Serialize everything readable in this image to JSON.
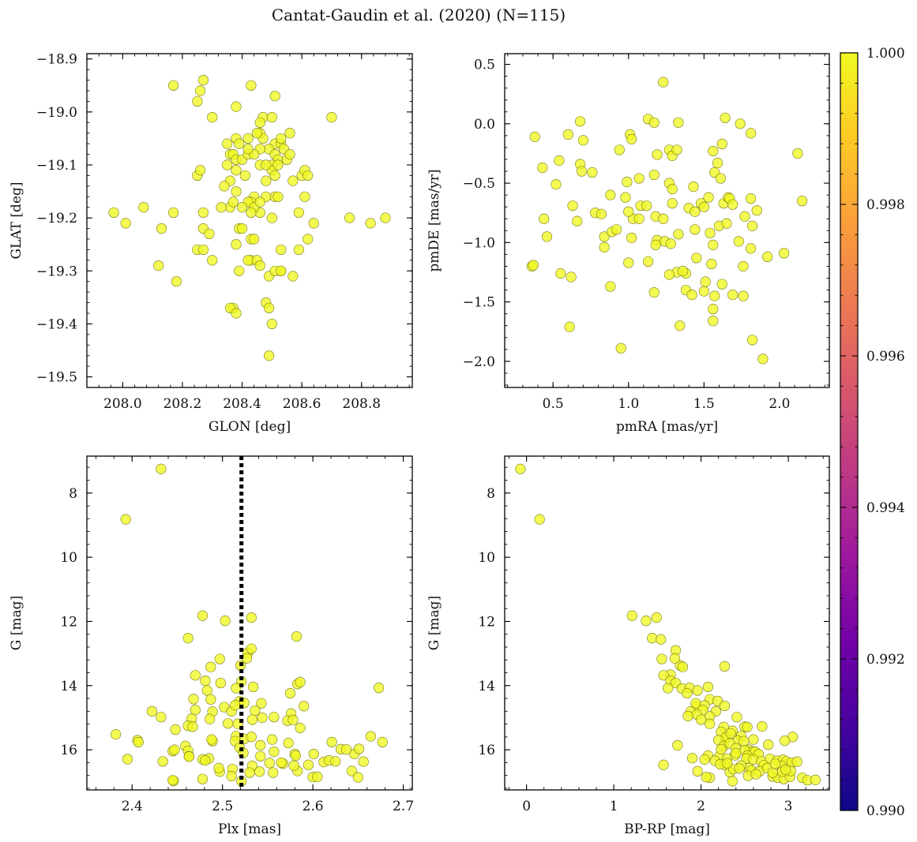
{
  "figure_title": "Cantat-Gaudin et al. (2020) (N=115)",
  "colorbar": {
    "min": 0.99,
    "max": 1.0,
    "ticks": [
      "0.990",
      "0.992",
      "0.994",
      "0.996",
      "0.998",
      "1.000"
    ],
    "tick_values": [
      0.99,
      0.992,
      0.994,
      0.996,
      0.998,
      1.0
    ],
    "colormap": "plasma",
    "colors": [
      "#0d0887",
      "#46039f",
      "#7201a8",
      "#9c179e",
      "#bd3786",
      "#d8576b",
      "#ed7953",
      "#fb9f3a",
      "#fdca26",
      "#f0f921"
    ]
  },
  "point_color": "#f0f921",
  "chart_data": [
    {
      "type": "scatter",
      "id": "sky",
      "title": "",
      "xlabel": "GLON [deg]",
      "ylabel": "GLAT [deg]",
      "xlim": [
        207.88,
        208.97
      ],
      "ylim": [
        -19.52,
        -18.89
      ],
      "xticks": [
        208.0,
        208.2,
        208.4,
        208.6,
        208.8
      ],
      "xtick_labels": [
        "208.0",
        "208.2",
        "208.4",
        "208.6",
        "208.8"
      ],
      "yticks": [
        -18.9,
        -19.0,
        -19.1,
        -19.2,
        -19.3,
        -19.4,
        -19.5
      ],
      "ytick_labels": [
        "−18.9",
        "−19.0",
        "−19.1",
        "−19.2",
        "−19.3",
        "−19.4",
        "−19.5"
      ],
      "x": [
        208.17,
        208.27,
        208.43,
        208.25,
        208.26,
        208.38,
        208.51,
        208.3,
        208.7,
        208.47,
        208.5,
        208.46,
        208.56,
        208.46,
        208.51,
        208.38,
        208.35,
        208.42,
        208.53,
        208.49,
        208.51,
        208.46,
        208.39,
        208.54,
        208.36,
        208.37,
        208.38,
        208.4,
        208.42,
        208.44,
        208.52,
        208.5,
        208.55,
        208.46,
        208.5,
        208.38,
        208.25,
        208.26,
        208.41,
        208.36,
        208.48,
        208.51,
        208.6,
        208.61,
        208.57,
        208.34,
        208.38,
        208.51,
        208.44,
        208.43,
        208.42,
        208.36,
        208.27,
        208.4,
        208.46,
        208.61,
        208.37,
        207.97,
        208.01,
        208.07,
        208.17,
        208.13,
        208.27,
        208.29,
        208.43,
        208.44,
        208.62,
        208.59,
        208.64,
        208.39,
        208.38,
        208.25,
        208.27,
        208.3,
        208.43,
        208.59,
        208.53,
        208.42,
        208.45,
        208.46,
        208.53,
        208.49,
        208.12,
        208.18,
        208.39,
        208.51,
        208.53,
        208.57,
        208.37,
        208.36,
        208.38,
        208.48,
        208.49,
        208.5,
        208.49,
        208.76,
        208.83,
        208.88,
        208.44,
        208.33,
        208.4,
        208.48,
        208.52,
        208.46,
        208.47,
        208.53,
        208.56,
        208.62,
        208.35,
        208.42,
        208.45,
        208.52,
        208.43,
        208.5,
        208.48
      ],
      "y": [
        -18.95,
        -18.94,
        -18.95,
        -18.98,
        -18.96,
        -18.99,
        -18.97,
        -19.01,
        -19.01,
        -19.01,
        -19.01,
        -19.02,
        -19.04,
        -19.04,
        -19.06,
        -19.05,
        -19.06,
        -19.05,
        -19.06,
        -19.07,
        -19.08,
        -19.07,
        -19.06,
        -19.07,
        -19.08,
        -19.08,
        -19.09,
        -19.09,
        -19.08,
        -19.08,
        -19.09,
        -19.1,
        -19.09,
        -19.1,
        -19.11,
        -19.11,
        -19.12,
        -19.11,
        -19.12,
        -19.13,
        -19.13,
        -19.12,
        -19.12,
        -19.11,
        -19.13,
        -19.14,
        -19.15,
        -19.16,
        -19.16,
        -19.17,
        -19.17,
        -19.18,
        -19.19,
        -19.18,
        -19.19,
        -19.16,
        -19.17,
        -19.19,
        -19.21,
        -19.18,
        -19.19,
        -19.22,
        -19.22,
        -19.23,
        -19.24,
        -19.24,
        -19.24,
        -19.19,
        -19.21,
        -19.22,
        -19.25,
        -19.26,
        -19.26,
        -19.28,
        -19.28,
        -19.26,
        -19.26,
        -19.28,
        -19.28,
        -19.29,
        -19.3,
        -19.31,
        -19.29,
        -19.32,
        -19.3,
        -19.3,
        -19.3,
        -19.31,
        -19.37,
        -19.37,
        -19.38,
        -19.36,
        -19.37,
        -19.4,
        -19.46,
        -19.2,
        -19.21,
        -19.2,
        -19.18,
        -19.18,
        -19.22,
        -19.16,
        -19.16,
        -19.17,
        -19.05,
        -19.05,
        -19.08,
        -19.12,
        -19.1,
        -19.07,
        -19.04,
        -19.1,
        -19.19,
        -19.2,
        -19.1
      ],
      "vline": null
    },
    {
      "type": "scatter",
      "id": "pm",
      "title": "",
      "xlabel": "pmRA [mas/yr]",
      "ylabel": "pmDE [mas/yr]",
      "xlim": [
        0.18,
        2.33
      ],
      "ylim": [
        -2.22,
        0.59
      ],
      "xticks": [
        0.5,
        1.0,
        1.5,
        2.0
      ],
      "xtick_labels": [
        "0.5",
        "1.0",
        "1.5",
        "2.0"
      ],
      "yticks": [
        0.5,
        0.0,
        -0.5,
        -1.0,
        -1.5,
        -2.0
      ],
      "ytick_labels": [
        "0.5",
        "0.0",
        "−0.5",
        "−1.0",
        "−1.5",
        "−2.0"
      ],
      "x": [
        1.23,
        0.68,
        1.13,
        1.17,
        1.33,
        1.64,
        1.74,
        1.81,
        0.38,
        0.6,
        0.7,
        1.01,
        1.02,
        0.43,
        0.54,
        0.68,
        0.69,
        0.76,
        0.94,
        1.19,
        1.27,
        1.29,
        1.32,
        1.56,
        1.62,
        2.12,
        2.15,
        1.59,
        0.52,
        0.99,
        1.07,
        1.17,
        1.27,
        1.29,
        1.29,
        1.43,
        1.48,
        1.53,
        1.57,
        1.61,
        1.63,
        1.66,
        1.67,
        1.69,
        1.77,
        1.81,
        1.85,
        0.63,
        0.66,
        0.88,
        0.98,
        1.08,
        1.18,
        1.23,
        1.4,
        1.44,
        1.5,
        1.6,
        0.44,
        0.78,
        0.82,
        0.84,
        0.89,
        0.92,
        1.02,
        1.19,
        1.24,
        1.33,
        1.44,
        1.54,
        1.65,
        1.73,
        1.81,
        1.92,
        2.03,
        0.46,
        0.84,
        1.0,
        1.13,
        1.28,
        1.38,
        1.45,
        1.55,
        1.76,
        1.82,
        1.03,
        1.07,
        1.18,
        1.32,
        1.36,
        1.5,
        1.57,
        0.36,
        0.37,
        0.55,
        0.62,
        0.88,
        1.17,
        1.27,
        1.38,
        1.42,
        1.51,
        1.62,
        1.69,
        1.76,
        1.56,
        1.56,
        1.34,
        1.56,
        0.61,
        1.82,
        0.95,
        1.89,
        1.12,
        1.0
      ],
      "y": [
        0.35,
        0.02,
        0.04,
        0.01,
        0.01,
        0.05,
        0.0,
        -0.08,
        -0.11,
        -0.09,
        -0.14,
        -0.09,
        -0.13,
        -0.37,
        -0.31,
        -0.34,
        -0.4,
        -0.41,
        -0.22,
        -0.26,
        -0.22,
        -0.27,
        -0.22,
        -0.23,
        -0.17,
        -0.25,
        -0.65,
        -0.33,
        -0.51,
        -0.49,
        -0.46,
        -0.43,
        -0.5,
        -0.55,
        -0.67,
        -0.53,
        -0.67,
        -0.62,
        -0.41,
        -0.46,
        -0.67,
        -0.62,
        -0.63,
        -0.68,
        -0.78,
        -0.63,
        -0.73,
        -0.69,
        -0.82,
        -0.6,
        -0.62,
        -0.69,
        -0.78,
        -0.8,
        -0.71,
        -0.74,
        -0.7,
        -0.86,
        -0.8,
        -0.75,
        -0.76,
        -0.95,
        -0.91,
        -0.89,
        -0.96,
        -0.98,
        -0.99,
        -0.93,
        -0.89,
        -0.92,
        -0.84,
        -0.99,
        -1.05,
        -1.12,
        -1.09,
        -0.95,
        -1.04,
        -1.17,
        -1.16,
        -1.01,
        -1.26,
        -1.13,
        -1.18,
        -1.2,
        -0.86,
        -0.8,
        -0.8,
        -1.02,
        -1.25,
        -1.24,
        -1.41,
        -1.45,
        -1.2,
        -1.19,
        -1.26,
        -1.29,
        -1.37,
        -1.42,
        -1.27,
        -1.4,
        -1.44,
        -1.33,
        -1.35,
        -1.44,
        -1.45,
        -1.56,
        -1.66,
        -1.7,
        -1.02,
        -1.71,
        -1.82,
        -1.89,
        -1.98,
        -0.69,
        -0.74
      ],
      "vline": null
    },
    {
      "type": "scatter",
      "id": "plx",
      "title": "",
      "xlabel": "Plx [mas]",
      "ylabel": "G [mag]",
      "xlim": [
        2.35,
        2.71
      ],
      "ylim": [
        17.25,
        6.85
      ],
      "xticks": [
        2.4,
        2.5,
        2.6,
        2.7
      ],
      "xtick_labels": [
        "2.4",
        "2.5",
        "2.6",
        "2.7"
      ],
      "yticks": [
        8,
        10,
        12,
        14,
        16
      ],
      "ytick_labels": [
        "8",
        "10",
        "12",
        "14",
        "16"
      ],
      "x": [
        2.432,
        2.393,
        2.478,
        2.503,
        2.532,
        2.462,
        2.528,
        2.582,
        2.532,
        2.497,
        2.487,
        2.527,
        2.52,
        2.47,
        2.481,
        2.498,
        2.521,
        2.515,
        2.534,
        2.583,
        2.575,
        2.586,
        2.673,
        2.468,
        2.483,
        2.487,
        2.502,
        2.519,
        2.524,
        2.536,
        2.543,
        2.557,
        2.576,
        2.59,
        2.517,
        2.51,
        2.47,
        2.489,
        2.514,
        2.533,
        2.466,
        2.486,
        2.506,
        2.524,
        2.544,
        2.572,
        2.422,
        2.432,
        2.448,
        2.462,
        2.467,
        2.489,
        2.515,
        2.532,
        2.555,
        2.578,
        2.586,
        2.445,
        2.459,
        2.488,
        2.514,
        2.519,
        2.542,
        2.557,
        2.573,
        2.58,
        2.382,
        2.406,
        2.407,
        2.447,
        2.462,
        2.485,
        2.523,
        2.542,
        2.581,
        2.601,
        2.621,
        2.631,
        2.646,
        2.651,
        2.664,
        2.677,
        2.395,
        2.434,
        2.446,
        2.463,
        2.478,
        2.497,
        2.511,
        2.533,
        2.556,
        2.567,
        2.583,
        2.6,
        2.612,
        2.618,
        2.643,
        2.445,
        2.463,
        2.478,
        2.481,
        2.496,
        2.51,
        2.521,
        2.53,
        2.541,
        2.552,
        2.565,
        2.579,
        2.595,
        2.605,
        2.625,
        2.656,
        2.637,
        2.65
      ],
      "y": [
        7.25,
        8.82,
        11.82,
        11.98,
        11.88,
        12.52,
        12.98,
        12.47,
        12.85,
        13.17,
        13.42,
        13.15,
        13.37,
        13.68,
        13.85,
        13.92,
        13.87,
        14.08,
        14.04,
        13.95,
        14.24,
        13.89,
        14.07,
        14.42,
        14.15,
        14.43,
        14.67,
        14.49,
        14.54,
        14.78,
        14.55,
        14.98,
        14.87,
        14.64,
        15.19,
        14.8,
        14.76,
        14.81,
        14.61,
        15.06,
        15.03,
        15.04,
        15.18,
        15.66,
        15.0,
        15.09,
        14.8,
        14.98,
        15.37,
        15.25,
        15.28,
        15.73,
        15.57,
        15.6,
        15.68,
        15.07,
        15.32,
        16.04,
        15.88,
        15.68,
        15.73,
        15.93,
        15.86,
        16.06,
        15.79,
        16.13,
        15.52,
        15.7,
        15.76,
        16.0,
        16.03,
        16.27,
        16.1,
        16.2,
        16.18,
        16.13,
        15.76,
        15.98,
        16.13,
        15.97,
        15.58,
        15.76,
        16.29,
        16.36,
        16.97,
        16.2,
        16.3,
        16.68,
        16.6,
        16.5,
        16.71,
        16.43,
        16.66,
        16.85,
        16.38,
        16.33,
        16.66,
        16.95,
        16.21,
        16.91,
        16.33,
        16.57,
        16.82,
        16.98,
        16.71,
        16.68,
        16.41,
        16.4,
        16.49,
        16.47,
        16.84,
        16.36,
        16.37,
        15.99,
        16.86
      ],
      "vline": 2.521
    },
    {
      "type": "scatter",
      "id": "cmd",
      "title": "",
      "xlabel": "BP-RP [mag]",
      "ylabel": "G [mag]",
      "xlim": [
        -0.25,
        3.47
      ],
      "ylim": [
        17.25,
        6.85
      ],
      "xticks": [
        0,
        1,
        2,
        3
      ],
      "xtick_labels": [
        "0",
        "1",
        "2",
        "3"
      ],
      "yticks": [
        8,
        10,
        12,
        14,
        16
      ],
      "ytick_labels": [
        "8",
        "10",
        "12",
        "14",
        "16"
      ],
      "x": [
        -0.07,
        0.15,
        1.21,
        1.37,
        1.49,
        1.44,
        1.54,
        1.71,
        1.55,
        1.76,
        1.79,
        1.65,
        1.7,
        1.57,
        1.65,
        1.71,
        1.62,
        1.78,
        1.87,
        2.1,
        1.84,
        1.96,
        2.27,
        2.08,
        1.95,
        1.94,
        2.04,
        2.19,
        2.27,
        2.17,
        2.02,
        2.1,
        2.41,
        1.88,
        1.95,
        2.1,
        1.85,
        2.0,
        2.26,
        2.5,
        2.28,
        2.23,
        2.36,
        2.53,
        2.7,
        2.28,
        2.34,
        2.46,
        2.6,
        2.2,
        2.42,
        2.26,
        2.33,
        2.4,
        2.55,
        2.49,
        2.59,
        2.5,
        2.62,
        2.77,
        2.66,
        2.53,
        2.08,
        2.21,
        2.3,
        2.39,
        2.52,
        2.6,
        2.69,
        2.79,
        2.87,
        2.94,
        2.98,
        3.04,
        2.72,
        2.92,
        3.1,
        2.55,
        1.73,
        1.57,
        1.9,
        2.04,
        2.16,
        2.27,
        2.33,
        2.46,
        2.58,
        2.67,
        2.76,
        2.82,
        2.88,
        2.95,
        3.02,
        3.16,
        3.22,
        1.96,
        2.1,
        2.22,
        2.37,
        2.54,
        2.63,
        2.82,
        2.93,
        3.31,
        2.44,
        2.06,
        2.3,
        2.36,
        2.23,
        3.05,
        3.03,
        2.85,
        2.4,
        2.96,
        2.97
      ],
      "y": [
        7.25,
        8.82,
        11.82,
        11.98,
        11.88,
        12.52,
        12.56,
        12.9,
        13.17,
        13.37,
        13.42,
        13.66,
        13.15,
        13.68,
        13.85,
        13.92,
        14.08,
        14.09,
        14.07,
        14.43,
        14.24,
        14.15,
        13.4,
        14.04,
        14.64,
        14.55,
        14.62,
        14.48,
        14.63,
        14.8,
        14.76,
        14.96,
        14.98,
        14.81,
        14.9,
        15.19,
        14.95,
        15.06,
        15.29,
        15.28,
        15.66,
        15.44,
        15.41,
        15.29,
        15.27,
        15.62,
        15.49,
        15.57,
        15.68,
        15.7,
        15.72,
        15.88,
        15.8,
        15.95,
        16.0,
        15.73,
        16.05,
        16.02,
        16.06,
        15.84,
        16.14,
        16.18,
        16.18,
        16.2,
        16.27,
        16.17,
        16.27,
        16.3,
        16.36,
        16.28,
        16.34,
        16.31,
        16.36,
        16.4,
        16.48,
        16.5,
        16.37,
        16.57,
        15.86,
        16.47,
        16.26,
        16.3,
        16.34,
        16.47,
        16.7,
        16.49,
        16.64,
        16.67,
        16.57,
        16.83,
        16.87,
        16.91,
        16.84,
        16.87,
        16.95,
        16.67,
        16.87,
        16.45,
        16.6,
        16.81,
        16.76,
        16.71,
        16.68,
        16.94,
        16.58,
        16.85,
        16.42,
        16.98,
        15.98,
        15.6,
        16.66,
        16.44,
        16.1,
        15.72,
        16.62
      ],
      "vline": null
    }
  ]
}
